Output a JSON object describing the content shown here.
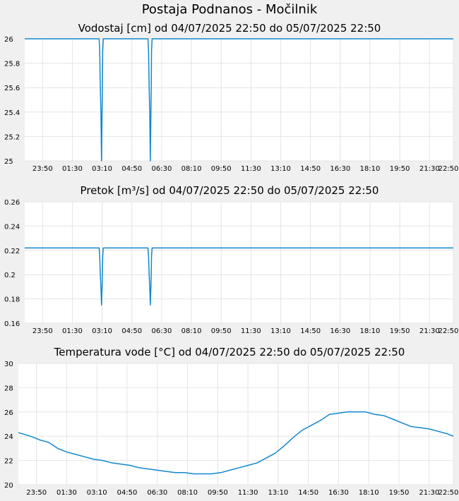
{
  "page_title": "Postaja Podnanos - Močilnik",
  "chart_data": [
    {
      "type": "line",
      "title": "Vodostaj [cm] od 04/07/2025 22:50 do 05/07/2025 22:50",
      "xlabel": "",
      "ylabel": "",
      "x_ticks": [
        "23:50",
        "01:30",
        "03:10",
        "04:50",
        "06:30",
        "08:10",
        "09:50",
        "11:30",
        "13:10",
        "14:50",
        "16:30",
        "18:10",
        "19:50",
        "21:30",
        "22:50"
      ],
      "y_ticks": [
        "25",
        "25.2",
        "25.4",
        "25.6",
        "25.8",
        "26"
      ],
      "ylim": [
        25,
        26
      ],
      "x_range": [
        "22:50",
        "22:50"
      ],
      "grid": true,
      "series": [
        {
          "color": "#1188cc",
          "x": [
            "22:50",
            "03:00",
            "03:02",
            "03:04",
            "03:06",
            "03:07",
            "03:08",
            "03:09",
            "03:10",
            "03:11",
            "03:12",
            "03:14",
            "03:16",
            "03:18",
            "05:44",
            "05:46",
            "05:48",
            "05:50",
            "05:51",
            "05:52",
            "05:53",
            "05:54",
            "05:55",
            "05:56",
            "05:58",
            "06:00",
            "06:02",
            "22:50"
          ],
          "values": [
            26,
            26,
            25.9,
            25.6,
            25.4,
            25.2,
            25.0,
            25.2,
            25.4,
            25.6,
            25.9,
            26,
            26,
            26,
            26,
            25.9,
            25.6,
            25.4,
            25.2,
            25.0,
            25.2,
            25.4,
            25.6,
            25.9,
            26,
            26,
            26,
            26
          ]
        }
      ]
    },
    {
      "type": "line",
      "title": "Pretok [m³/s] od 04/07/2025 22:50 do 05/07/2025 22:50",
      "xlabel": "",
      "ylabel": "",
      "x_ticks": [
        "23:50",
        "01:30",
        "03:10",
        "04:50",
        "06:30",
        "08:10",
        "09:50",
        "11:30",
        "13:10",
        "14:50",
        "16:30",
        "18:10",
        "19:50",
        "21:30",
        "22:50"
      ],
      "y_ticks": [
        "0.16",
        "0.18",
        "0.2",
        "0.22",
        "0.24",
        "0.26"
      ],
      "ylim": [
        0.16,
        0.26
      ],
      "x_range": [
        "22:50",
        "22:50"
      ],
      "grid": true,
      "series": [
        {
          "color": "#1188cc",
          "x": [
            "22:50",
            "03:00",
            "03:02",
            "03:04",
            "03:06",
            "03:07",
            "03:08",
            "03:09",
            "03:10",
            "03:11",
            "03:12",
            "03:14",
            "03:16",
            "03:18",
            "05:44",
            "05:46",
            "05:48",
            "05:50",
            "05:51",
            "05:52",
            "05:53",
            "05:54",
            "05:55",
            "05:56",
            "05:58",
            "06:00",
            "06:02",
            "22:50"
          ],
          "values": [
            0.222,
            0.222,
            0.215,
            0.2,
            0.19,
            0.183,
            0.175,
            0.183,
            0.19,
            0.2,
            0.215,
            0.222,
            0.222,
            0.222,
            0.222,
            0.215,
            0.2,
            0.19,
            0.183,
            0.175,
            0.183,
            0.19,
            0.2,
            0.215,
            0.222,
            0.222,
            0.222,
            0.222
          ]
        }
      ]
    },
    {
      "type": "line",
      "title": "Temperatura vode [°C] od 04/07/2025 22:50 do 05/07/2025 22:50",
      "xlabel": "",
      "ylabel": "",
      "x_ticks": [
        "23:50",
        "01:30",
        "03:10",
        "04:50",
        "06:30",
        "08:10",
        "09:50",
        "11:30",
        "13:10",
        "14:50",
        "16:30",
        "18:10",
        "19:50",
        "21:30",
        "22:50"
      ],
      "y_ticks": [
        "20",
        "22",
        "24",
        "26",
        "28",
        "30"
      ],
      "ylim": [
        20,
        30
      ],
      "x_range": [
        "22:50",
        "22:50"
      ],
      "grid": true,
      "series": [
        {
          "color": "#1188cc",
          "x": [
            "22:50",
            "23:30",
            "00:00",
            "00:30",
            "01:00",
            "01:30",
            "02:00",
            "02:30",
            "03:00",
            "03:30",
            "04:00",
            "04:30",
            "05:00",
            "05:30",
            "06:00",
            "06:30",
            "07:00",
            "07:30",
            "08:00",
            "08:30",
            "09:00",
            "09:30",
            "10:00",
            "10:30",
            "11:00",
            "11:30",
            "12:00",
            "12:30",
            "13:00",
            "13:30",
            "14:00",
            "14:30",
            "15:00",
            "15:30",
            "16:00",
            "16:30",
            "17:00",
            "17:30",
            "18:00",
            "18:30",
            "19:00",
            "19:30",
            "20:00",
            "20:30",
            "21:00",
            "21:30",
            "22:00",
            "22:30",
            "22:50"
          ],
          "values": [
            24.3,
            24.0,
            23.7,
            23.5,
            23.0,
            22.7,
            22.5,
            22.3,
            22.1,
            22.0,
            21.8,
            21.7,
            21.6,
            21.4,
            21.3,
            21.2,
            21.1,
            21.0,
            21.0,
            20.9,
            20.9,
            20.9,
            21.0,
            21.2,
            21.4,
            21.6,
            21.8,
            22.2,
            22.6,
            23.2,
            23.9,
            24.5,
            24.9,
            25.3,
            25.8,
            25.9,
            26.0,
            26.0,
            26.0,
            25.8,
            25.7,
            25.4,
            25.1,
            24.8,
            24.7,
            24.6,
            24.4,
            24.2,
            24.0
          ]
        }
      ]
    }
  ]
}
